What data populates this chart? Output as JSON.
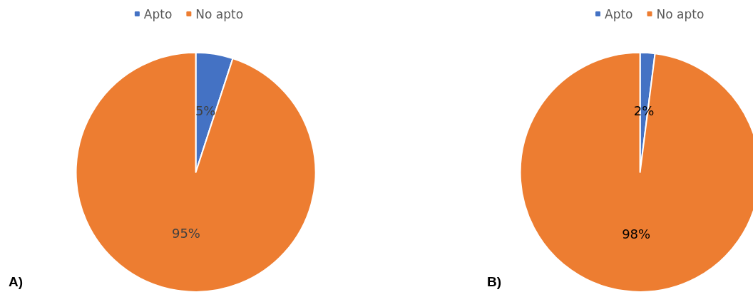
{
  "chart_data": [
    {
      "type": "pie",
      "categories": [
        "Apto",
        "No apto"
      ],
      "values": [
        5,
        95
      ],
      "value_labels": [
        "5%",
        "95%"
      ],
      "colors": [
        "#4472c4",
        "#ed7d31"
      ],
      "legend": "top",
      "annotations": [
        "A)"
      ]
    },
    {
      "type": "pie",
      "categories": [
        "Apto",
        "No apto"
      ],
      "values": [
        2,
        98
      ],
      "value_labels": [
        "2%",
        "98%"
      ],
      "colors": [
        "#4472c4",
        "#ed7d31"
      ],
      "legend": "top",
      "annotations": [
        "B)"
      ]
    }
  ]
}
